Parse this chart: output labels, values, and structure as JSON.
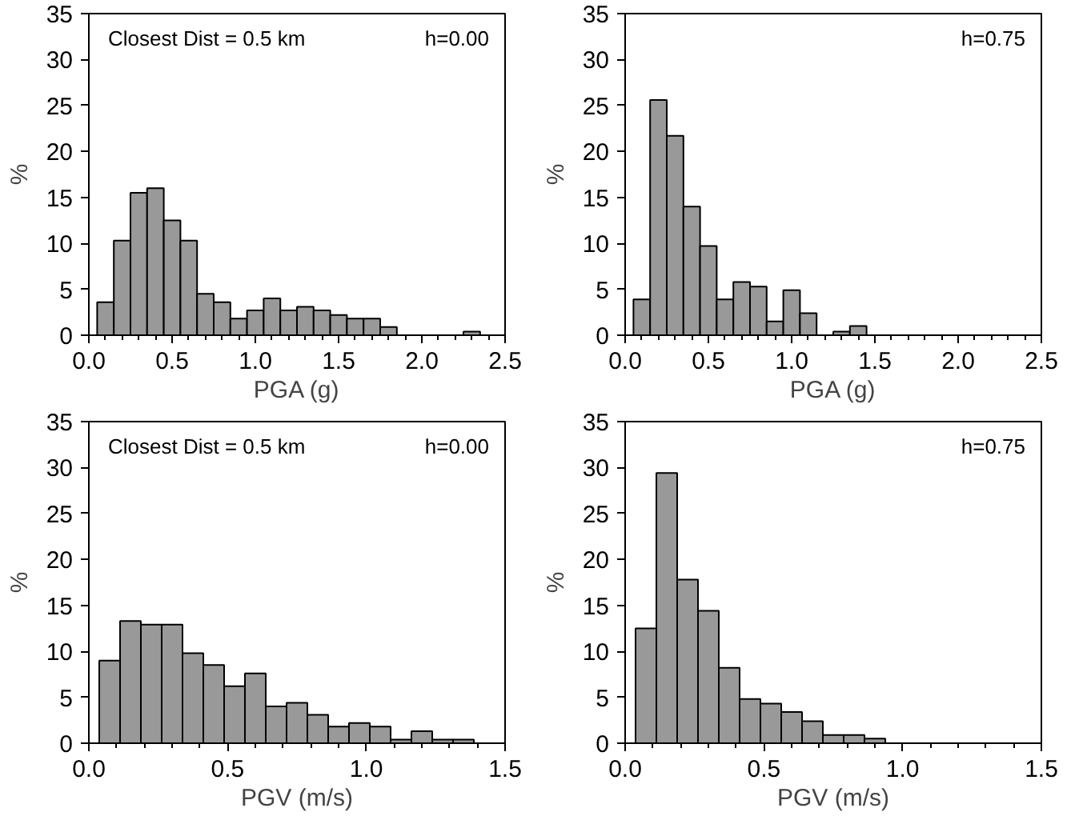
{
  "chart_data": [
    {
      "type": "histogram",
      "bins": [
        0.05,
        0.15,
        0.25,
        0.35,
        0.45,
        0.55,
        0.65,
        0.75,
        0.85,
        0.95,
        1.05,
        1.15,
        1.25,
        1.35,
        1.45,
        1.55,
        1.65,
        1.75,
        1.85,
        1.95,
        2.05,
        2.15,
        2.25,
        2.35
      ],
      "values": [
        3.6,
        10.3,
        15.5,
        16,
        12.5,
        10.3,
        4.5,
        3.6,
        1.8,
        2.7,
        4,
        2.7,
        3.1,
        2.7,
        2.2,
        1.8,
        1.8,
        0.9,
        0,
        0,
        0,
        0,
        0.4
      ],
      "color": "#999999",
      "xlabel": "PGA (g)",
      "ylabel": "%",
      "xlim": [
        0,
        2.5
      ],
      "xticks": [
        {
          "value": 0,
          "label": "0.0"
        },
        0.5,
        {
          "value": 1,
          "label": "1.0"
        },
        1.5,
        {
          "value": 2,
          "label": "2.0"
        },
        2.5
      ],
      "ylim": [
        0,
        35
      ],
      "yticks": [
        0,
        5,
        10,
        15,
        20,
        25,
        30,
        35
      ],
      "grid": false,
      "annotations": [
        "Closest Dist = 0.5 km",
        "h=0.00"
      ]
    },
    {
      "type": "histogram",
      "bins": [
        0.05,
        0.15,
        0.25,
        0.35,
        0.45,
        0.55,
        0.65,
        0.75,
        0.85,
        0.95,
        1.05,
        1.15,
        1.25,
        1.35,
        1.45
      ],
      "values": [
        3.9,
        25.6,
        21.7,
        14,
        9.7,
        3.9,
        5.8,
        5.3,
        1.5,
        4.9,
        2.4,
        0,
        0.4,
        1
      ],
      "color": "#999999",
      "xlabel": "PGA (g)",
      "ylabel": "%",
      "xlim": [
        0,
        2.5
      ],
      "xticks": [
        {
          "value": 0,
          "label": "0.0"
        },
        0.5,
        {
          "value": 1,
          "label": "1.0"
        },
        1.5,
        {
          "value": 2,
          "label": "2.0"
        },
        2.5
      ],
      "ylim": [
        0,
        35
      ],
      "yticks": [
        0,
        5,
        10,
        15,
        20,
        25,
        30,
        35
      ],
      "grid": false,
      "annotations": [
        "h=0.75"
      ]
    },
    {
      "type": "histogram",
      "bins": [
        0.0375,
        0.1125,
        0.1875,
        0.2625,
        0.3375,
        0.4125,
        0.4875,
        0.5625,
        0.6375,
        0.7125,
        0.7875,
        0.8625,
        0.9375,
        1.0125,
        1.0875,
        1.1625,
        1.2375,
        1.3125,
        1.3875
      ],
      "values": [
        9,
        13.3,
        12.9,
        12.9,
        9.8,
        8.5,
        6.2,
        7.6,
        4,
        4.4,
        3.1,
        1.8,
        2.2,
        1.8,
        0.4,
        1.3,
        0.4,
        0.4
      ],
      "color": "#999999",
      "xlabel": "PGV (m/s)",
      "ylabel": "%",
      "xlim": [
        0,
        1.5
      ],
      "xticks": [
        {
          "value": 0,
          "label": "0.0"
        },
        0.5,
        {
          "value": 1,
          "label": "1.0"
        },
        1.5
      ],
      "ylim": [
        0,
        35
      ],
      "yticks": [
        0,
        5,
        10,
        15,
        20,
        25,
        30,
        35
      ],
      "grid": false,
      "annotations": [
        "Closest Dist = 0.5 km",
        "h=0.00"
      ]
    },
    {
      "type": "histogram",
      "bins": [
        0.0375,
        0.1125,
        0.1875,
        0.2625,
        0.3375,
        0.4125,
        0.4875,
        0.5625,
        0.6375,
        0.7125,
        0.7875,
        0.8625,
        0.9375
      ],
      "values": [
        12.5,
        29.4,
        17.8,
        14.4,
        8.2,
        4.8,
        4.3,
        3.4,
        2.4,
        0.9,
        0.9,
        0.5
      ],
      "color": "#999999",
      "xlabel": "PGV (m/s)",
      "ylabel": "%",
      "xlim": [
        0,
        1.5
      ],
      "xticks": [
        {
          "value": 0,
          "label": "0.0"
        },
        0.5,
        {
          "value": 1,
          "label": "1.0"
        },
        1.5
      ],
      "ylim": [
        0,
        35
      ],
      "yticks": [
        0,
        5,
        10,
        15,
        20,
        25,
        30,
        35
      ],
      "grid": false,
      "annotations": [
        "h=0.75"
      ]
    }
  ]
}
